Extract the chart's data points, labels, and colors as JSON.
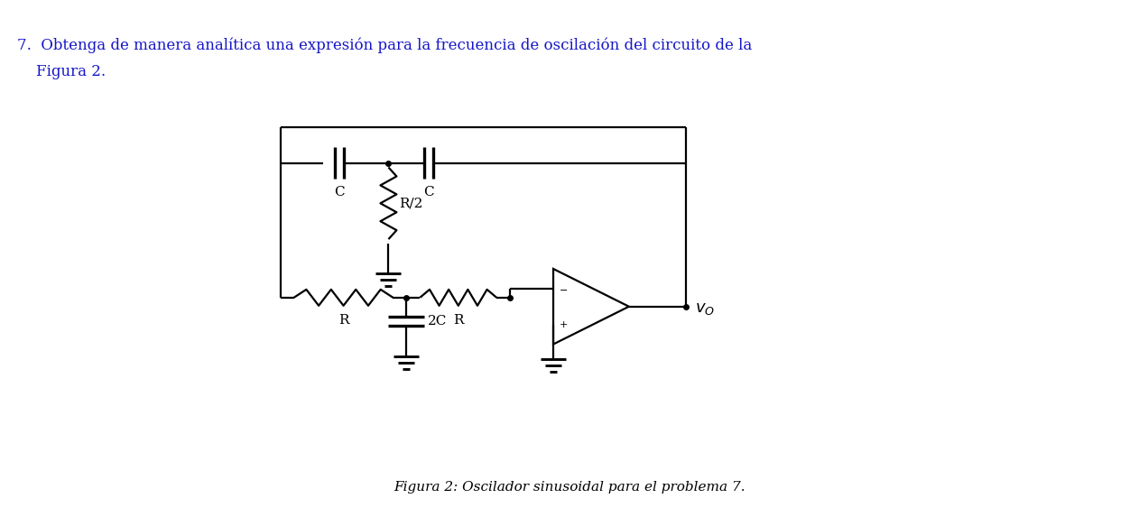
{
  "title_line1": "7.  Obtenga de manera analítica una expresión para la frecuencia de oscilación del circuito de la",
  "title_line2": "    Figura 2.",
  "caption": "Figura 2: Oscilador sinusoidal para el problema 7.",
  "bg_color": "#ffffff",
  "text_color": "#000000",
  "title_color": "#1515c8",
  "fig_width": 12.62,
  "fig_height": 5.73
}
